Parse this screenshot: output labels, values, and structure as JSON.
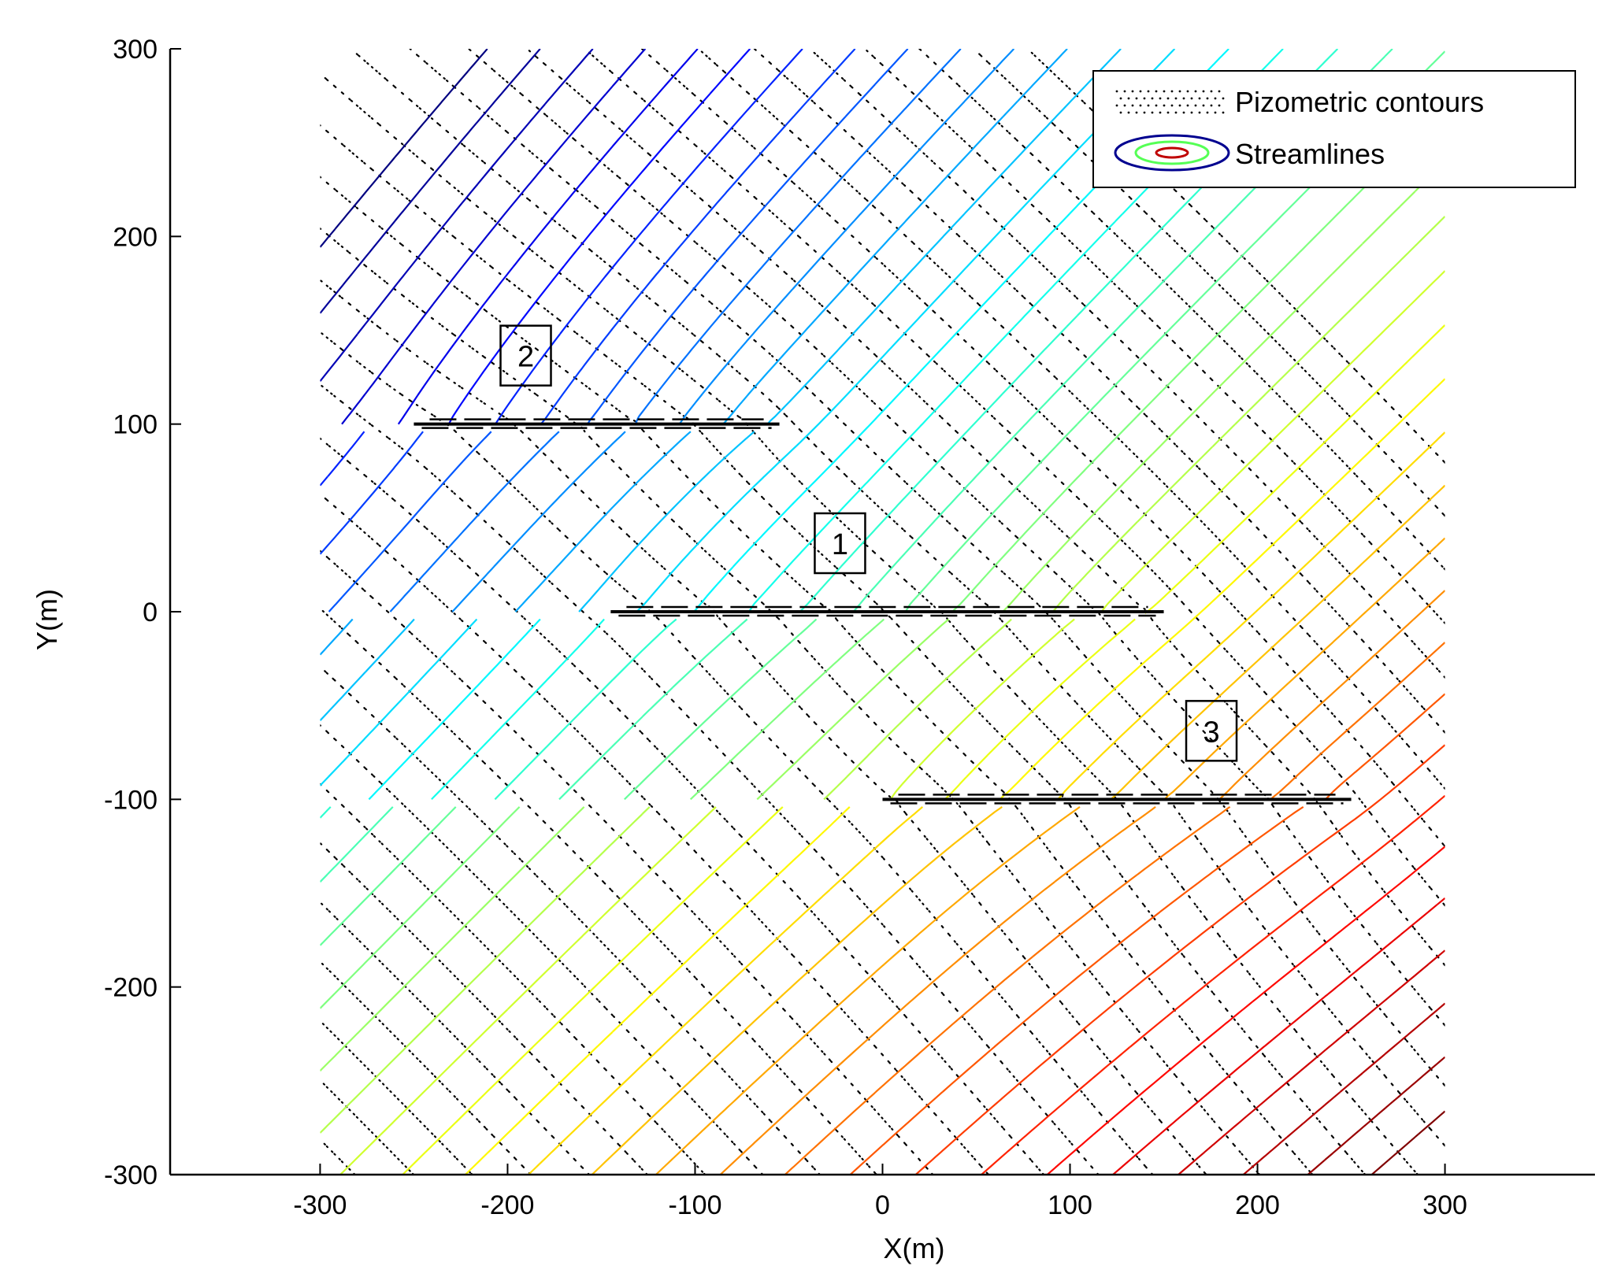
{
  "chart_data": {
    "type": "contour",
    "xlabel": "X(m)",
    "ylabel": "Y(m)",
    "xlim": [
      -380,
      380
    ],
    "ylim": [
      -300,
      300
    ],
    "xticks": [
      -300,
      -200,
      -100,
      0,
      100,
      200,
      300
    ],
    "yticks": [
      -300,
      -200,
      -100,
      0,
      100,
      200,
      300
    ],
    "grid": false,
    "legend": {
      "position": "top-right",
      "entries": [
        {
          "name": "Pizometric contours",
          "style": "dotted",
          "color": "#000000"
        },
        {
          "name": "Streamlines",
          "style": "contour",
          "colors": [
            "#00008f",
            "#55ff55",
            "#bf0000"
          ]
        }
      ]
    },
    "wells": [
      {
        "label": "2",
        "x_start": -250,
        "x_end": -55,
        "y": 100
      },
      {
        "label": "1",
        "x_start": -145,
        "x_end": 150,
        "y": 0
      },
      {
        "label": "3",
        "x_start": 0,
        "x_end": 250,
        "y": -100
      }
    ],
    "colormap": "jet",
    "field_domain": {
      "x": [
        -300,
        300
      ],
      "y": [
        -300,
        300
      ]
    }
  }
}
